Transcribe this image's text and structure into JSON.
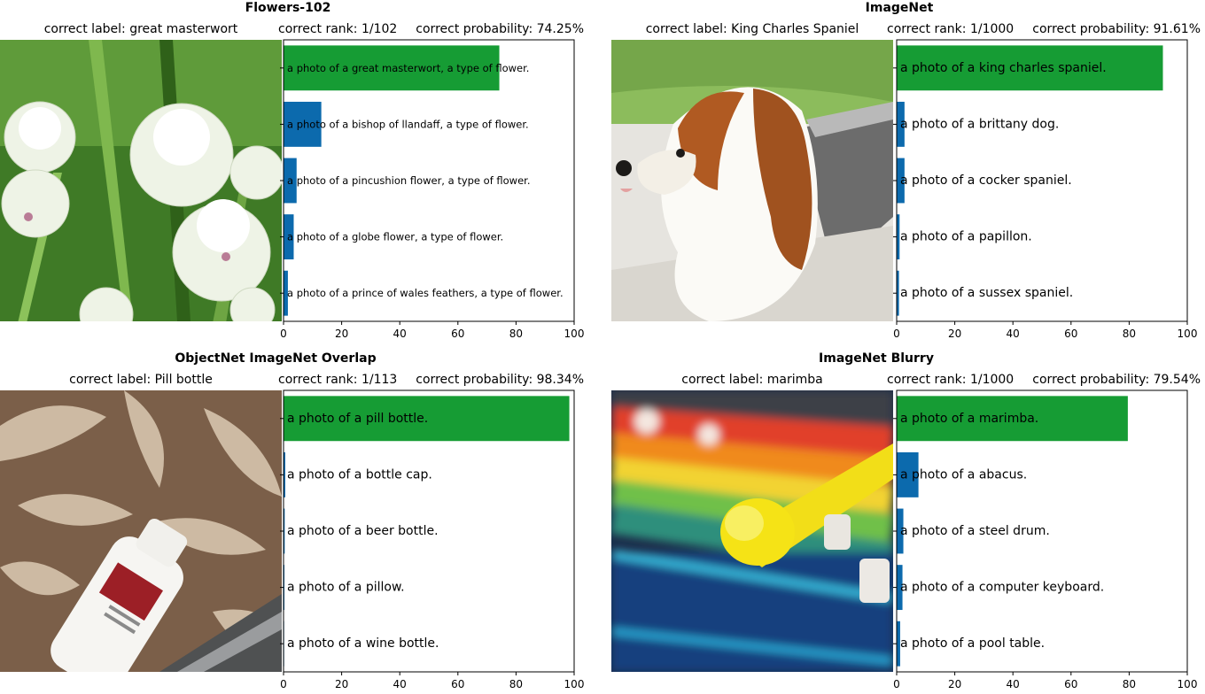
{
  "chart_data": [
    {
      "type": "bar",
      "title": "Flowers-102",
      "correct_label": "correct label: great masterwort",
      "correct_rank": "correct rank: 1/102",
      "correct_probability": "correct probability: 74.25%",
      "categories": [
        "a photo of a great masterwort, a type of flower.",
        "a photo of a bishop of llandaff, a type of flower.",
        "a photo of a pincushion flower, a type of flower.",
        "a photo of a globe flower, a type of flower.",
        "a photo of a prince of wales feathers, a type of flower."
      ],
      "values": [
        74.25,
        13,
        4.5,
        3.5,
        1.5
      ],
      "correct_index": 0,
      "xlim": [
        0,
        100
      ],
      "xticks": [
        "0",
        "20",
        "40",
        "60",
        "80",
        "100"
      ],
      "image": "flowers-photo"
    },
    {
      "type": "bar",
      "title": "ImageNet",
      "correct_label": "correct label: King Charles Spaniel",
      "correct_rank": "correct rank: 1/1000",
      "correct_probability": "correct probability: 91.61%",
      "categories": [
        "a photo of a king charles spaniel.",
        "a photo of a brittany dog.",
        "a photo of a cocker spaniel.",
        "a photo of a papillon.",
        "a photo of a sussex spaniel."
      ],
      "values": [
        91.61,
        2.7,
        2.7,
        1.0,
        0.8
      ],
      "correct_index": 0,
      "xlim": [
        0,
        100
      ],
      "xticks": [
        "0",
        "20",
        "40",
        "60",
        "80",
        "100"
      ],
      "image": "dog-photo"
    },
    {
      "type": "bar",
      "title": "ObjectNet ImageNet Overlap",
      "correct_label": "correct label: Pill bottle",
      "correct_rank": "correct rank: 1/113",
      "correct_probability": "correct probability: 98.34%",
      "categories": [
        "a photo of a pill bottle.",
        "a photo of a bottle cap.",
        "a photo of a beer bottle.",
        "a photo of a pillow.",
        "a photo of a wine bottle."
      ],
      "values": [
        98.34,
        0.6,
        0.4,
        0.3,
        0.2
      ],
      "correct_index": 0,
      "xlim": [
        0,
        100
      ],
      "xticks": [
        "0",
        "20",
        "40",
        "60",
        "80",
        "100"
      ],
      "image": "bottle-photo"
    },
    {
      "type": "bar",
      "title": "ImageNet Blurry",
      "correct_label": "correct label: marimba",
      "correct_rank": "correct rank: 1/1000",
      "correct_probability": "correct probability: 79.54%",
      "categories": [
        "a photo of a marimba.",
        "a photo of a abacus.",
        "a photo of a steel drum.",
        "a photo of a computer keyboard.",
        "a photo of a pool table."
      ],
      "values": [
        79.54,
        7.5,
        2.3,
        2.0,
        1.2
      ],
      "correct_index": 0,
      "xlim": [
        0,
        100
      ],
      "xticks": [
        "0",
        "20",
        "40",
        "60",
        "80",
        "100"
      ],
      "image": "marimba-photo"
    }
  ],
  "colors": {
    "correct": "#169c34",
    "other": "#0c6aad"
  }
}
